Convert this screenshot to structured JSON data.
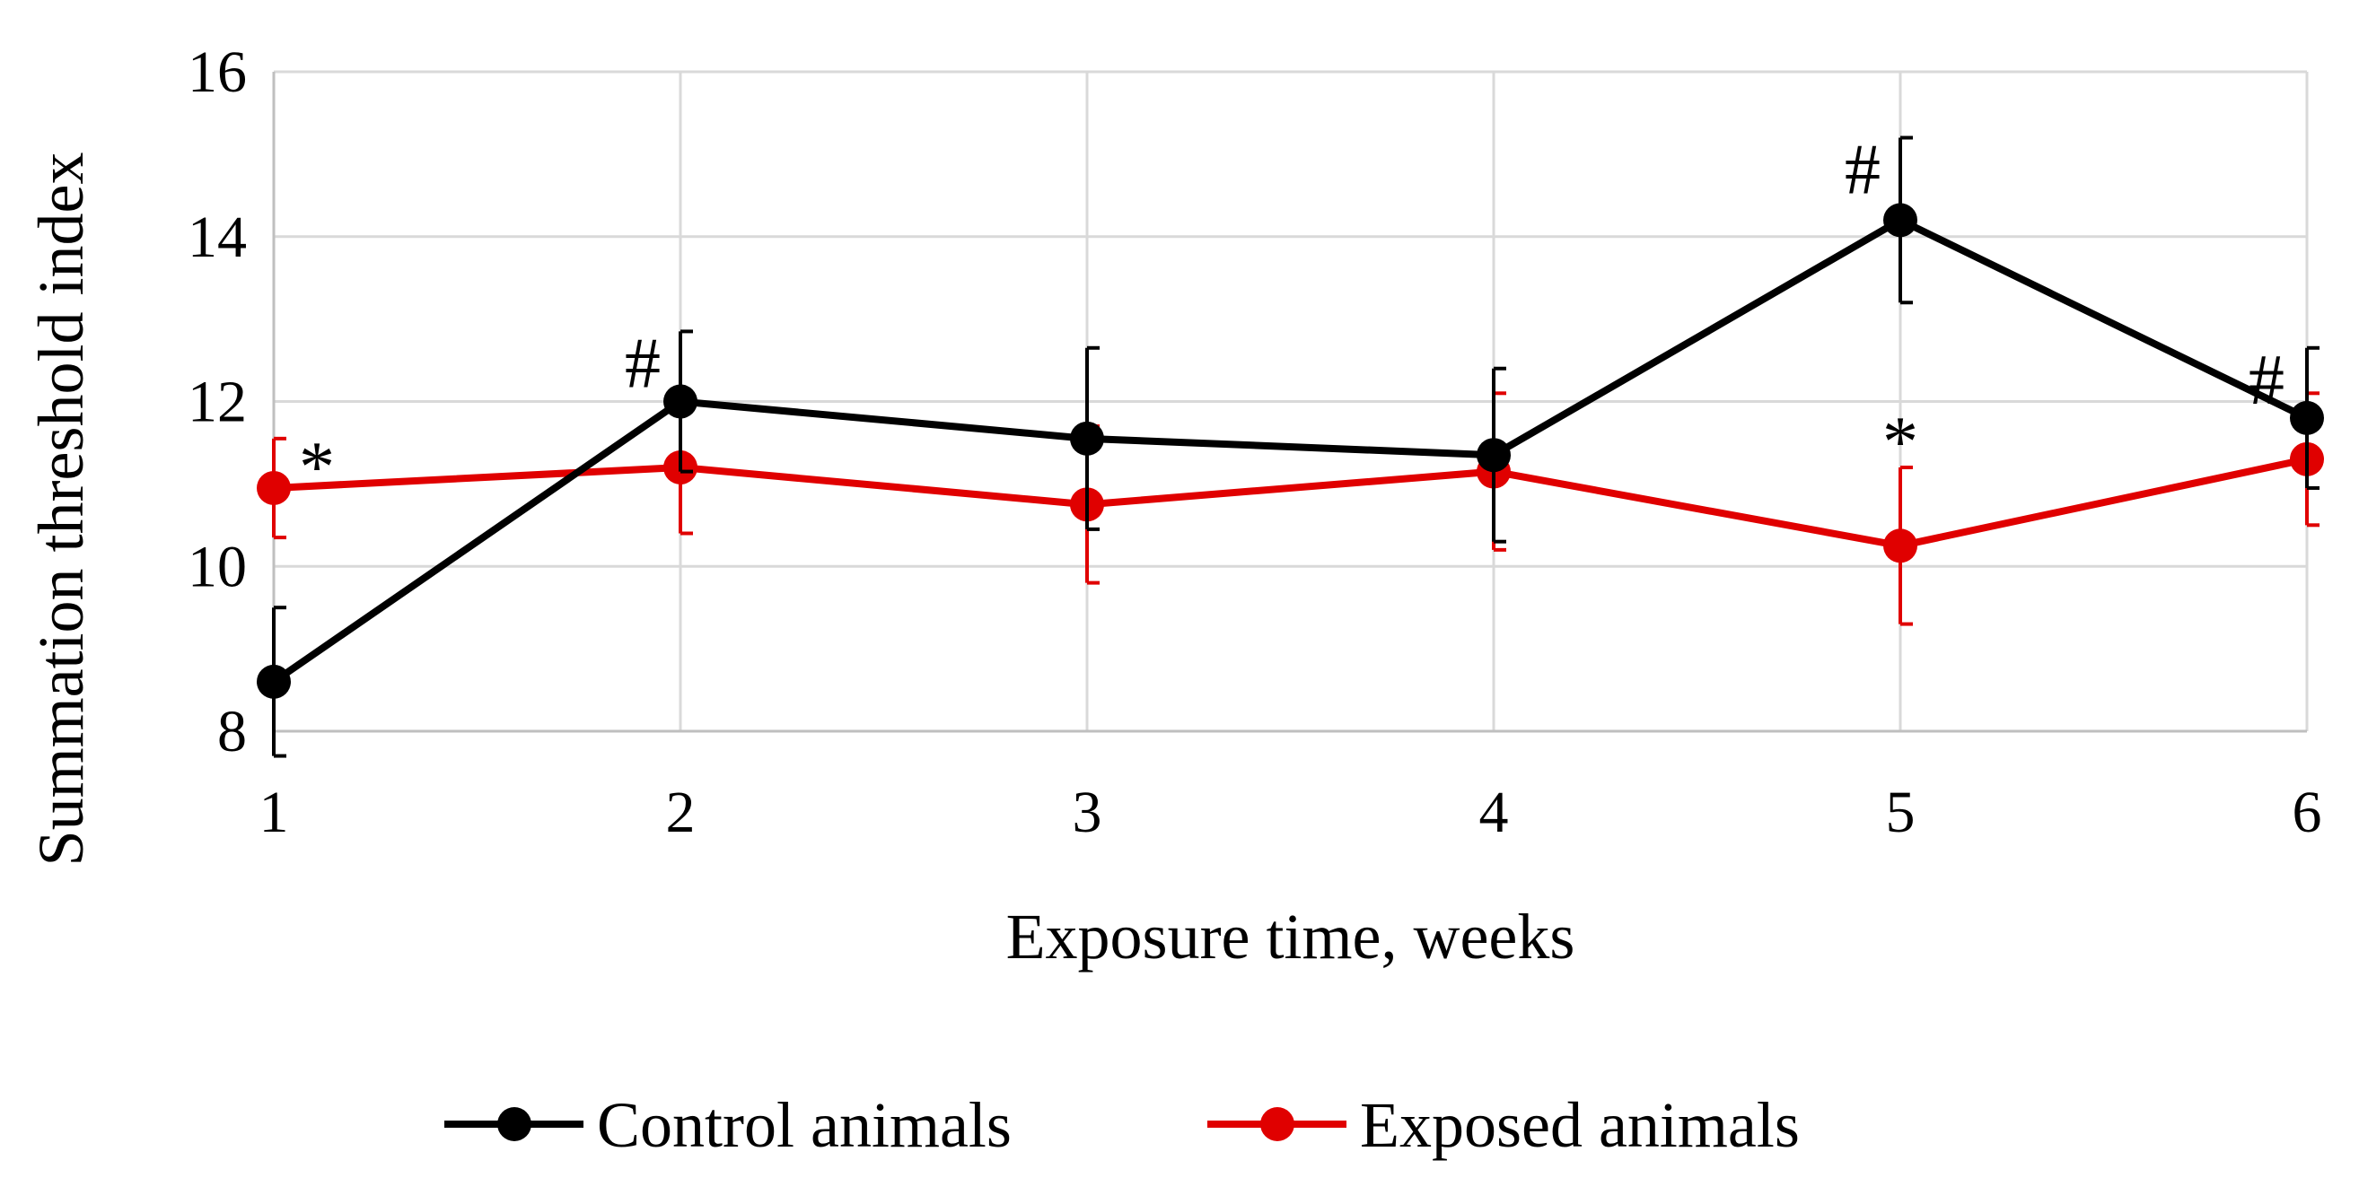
{
  "chart_data": {
    "type": "line",
    "title": "",
    "xlabel": "Exposure time, weeks",
    "ylabel": "Summation threshold index",
    "x": [
      1,
      2,
      3,
      4,
      5,
      6
    ],
    "xlim": [
      1,
      6
    ],
    "ylim": [
      8,
      16
    ],
    "yticks": [
      8,
      10,
      12,
      14,
      16
    ],
    "xtick_labels": [
      "1",
      "2",
      "3",
      "4",
      "5",
      "6"
    ],
    "ytick_labels": [
      "8",
      "10",
      "12",
      "14",
      "16"
    ],
    "grid": true,
    "legend_position": "bottom",
    "series": [
      {
        "name": "Control animals",
        "color": "#000000",
        "values": [
          8.6,
          12.0,
          11.55,
          11.35,
          14.2,
          11.8
        ],
        "error": [
          0.9,
          0.85,
          1.1,
          1.05,
          1.0,
          0.85
        ]
      },
      {
        "name": "Exposed animals",
        "color": "#e00000",
        "values": [
          10.95,
          11.2,
          10.75,
          11.15,
          10.25,
          11.3
        ],
        "error": [
          0.6,
          0.8,
          0.95,
          0.95,
          0.95,
          0.8
        ]
      }
    ],
    "annotations": [
      {
        "text": "#",
        "x": 2,
        "series": "Control animals"
      },
      {
        "text": "#",
        "x": 5,
        "series": "Control animals"
      },
      {
        "text": "#",
        "x": 6,
        "series": "Control animals"
      },
      {
        "text": "*",
        "x": 1,
        "series": "Exposed animals"
      },
      {
        "text": "*",
        "x": 5,
        "series": "Exposed animals"
      }
    ]
  }
}
